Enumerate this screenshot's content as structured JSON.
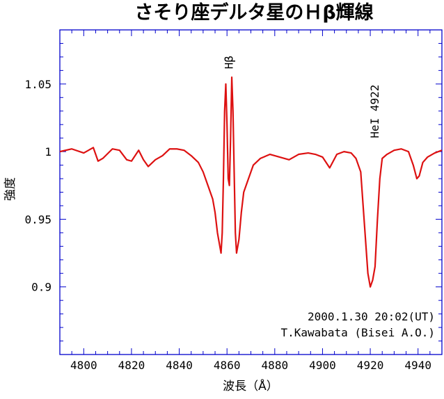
{
  "chart_data": {
    "type": "line",
    "title": "さそり座デルタ星のＨβ輝線",
    "xlabel": "波長（Å）",
    "ylabel": "強度",
    "xlim": [
      4790,
      4950
    ],
    "ylim": [
      0.85,
      1.09
    ],
    "x_ticks": [
      4800,
      4820,
      4840,
      4860,
      4880,
      4900,
      4920,
      4940
    ],
    "x_tick_labels": [
      "4800",
      "4820",
      "4840",
      "4860",
      "4880",
      "4900",
      "4920",
      "4940"
    ],
    "y_ticks": [
      0.9,
      0.95,
      1.0,
      1.05
    ],
    "y_tick_labels": [
      "0.9",
      "0.95",
      "1",
      "1.05"
    ],
    "series_color": "#dd1111",
    "axis_color": "#0000cc",
    "series": [
      {
        "x": [
          4790,
          4795,
          4800,
          4804,
          4806,
          4808,
          4812,
          4815,
          4818,
          4820,
          4823,
          4825,
          4827,
          4830,
          4833,
          4836,
          4839,
          4842,
          4845,
          4848,
          4850,
          4852,
          4854,
          4855,
          4856,
          4857,
          4857.5,
          4858,
          4858.5,
          4859,
          4859.5,
          4860,
          4860.5,
          4861,
          4861.5,
          4862,
          4862.5,
          4863,
          4863.5,
          4864,
          4865,
          4866,
          4867,
          4869,
          4871,
          4874,
          4878,
          4882,
          4886,
          4890,
          4894,
          4897,
          4900,
          4903,
          4906,
          4909,
          4912,
          4914,
          4916,
          4917,
          4918,
          4919,
          4920,
          4921,
          4922,
          4923,
          4924,
          4925,
          4927,
          4930,
          4933,
          4936,
          4938,
          4939.5,
          4940.5,
          4942,
          4944,
          4947,
          4950
        ],
        "y": [
          1.0,
          1.002,
          0.999,
          1.003,
          0.993,
          0.995,
          1.002,
          1.001,
          0.994,
          0.993,
          1.001,
          0.994,
          0.989,
          0.994,
          0.997,
          1.002,
          1.002,
          1.001,
          0.997,
          0.992,
          0.985,
          0.975,
          0.965,
          0.955,
          0.94,
          0.93,
          0.925,
          0.94,
          0.98,
          1.03,
          1.05,
          1.02,
          0.98,
          0.975,
          1.01,
          1.055,
          1.03,
          0.985,
          0.94,
          0.925,
          0.935,
          0.955,
          0.97,
          0.98,
          0.99,
          0.995,
          0.998,
          0.996,
          0.994,
          0.998,
          0.999,
          0.998,
          0.996,
          0.988,
          0.998,
          1.0,
          0.999,
          0.995,
          0.985,
          0.96,
          0.935,
          0.91,
          0.9,
          0.905,
          0.915,
          0.95,
          0.98,
          0.995,
          0.998,
          1.001,
          1.002,
          1.0,
          0.99,
          0.98,
          0.982,
          0.992,
          0.996,
          0.999,
          1.001
        ]
      }
    ],
    "annotations": [
      {
        "text": "Hβ",
        "x": 4861,
        "y": 1.061,
        "rotation": -90
      },
      {
        "text": "HeI 4922",
        "x": 4922,
        "y": 1.01,
        "rotation": -90
      }
    ],
    "notes": [
      "2000.1.30 20:02(UT)",
      "T.Kawabata (Bisei A.O.)"
    ]
  }
}
